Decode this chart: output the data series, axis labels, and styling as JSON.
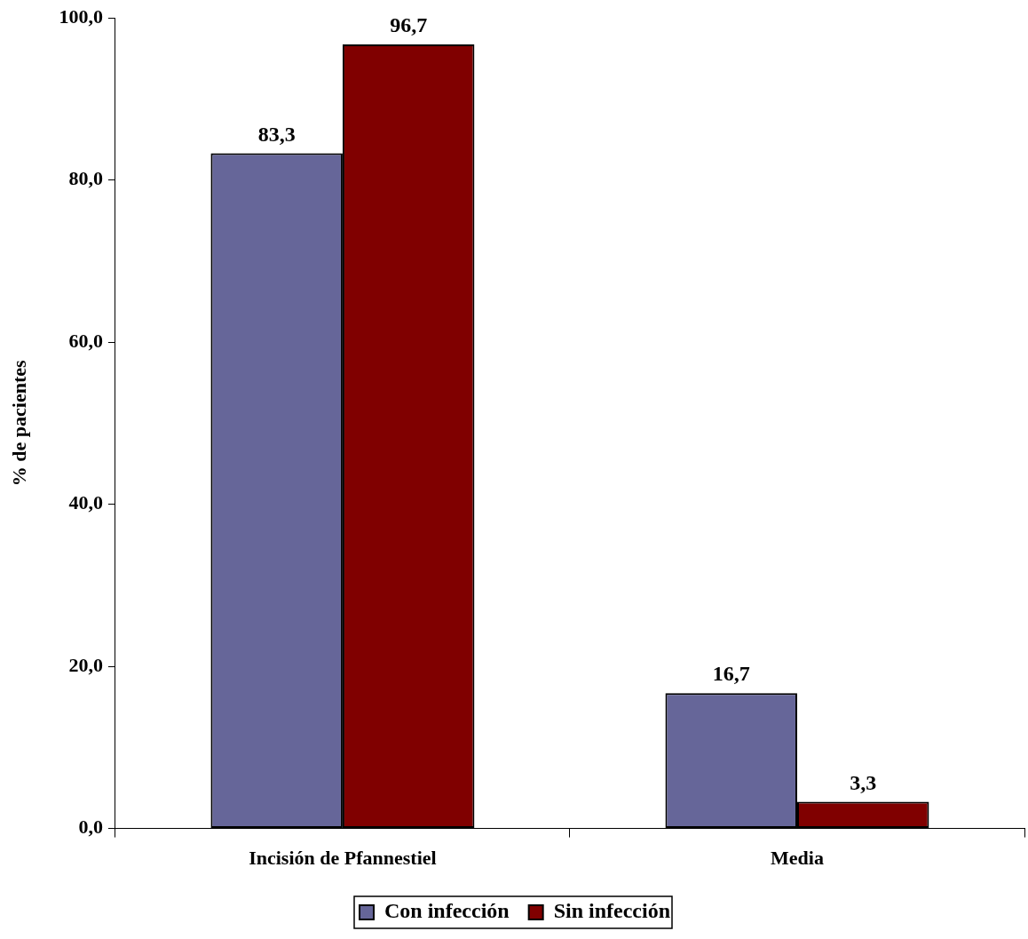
{
  "chart_data": {
    "type": "bar",
    "ylabel": "% de pacientes",
    "categories": [
      "Incisión de Pfannestiel",
      "Media"
    ],
    "series": [
      {
        "name": "Con infección",
        "color": "#666699",
        "values": [
          83.3,
          16.7
        ],
        "value_labels": [
          "83,3",
          "16,7"
        ]
      },
      {
        "name": "Sin infección",
        "color": "#800000",
        "values": [
          96.7,
          3.3
        ],
        "value_labels": [
          "96,7",
          "3,3"
        ]
      }
    ],
    "ylim": [
      0,
      100
    ],
    "yticks": [
      {
        "value": 0,
        "label": "0,0"
      },
      {
        "value": 20,
        "label": "20,0"
      },
      {
        "value": 40,
        "label": "40,0"
      },
      {
        "value": 60,
        "label": "60,0"
      },
      {
        "value": 80,
        "label": "80,0"
      },
      {
        "value": 100,
        "label": "100,0"
      }
    ],
    "grid": false,
    "legend": "bottom"
  }
}
